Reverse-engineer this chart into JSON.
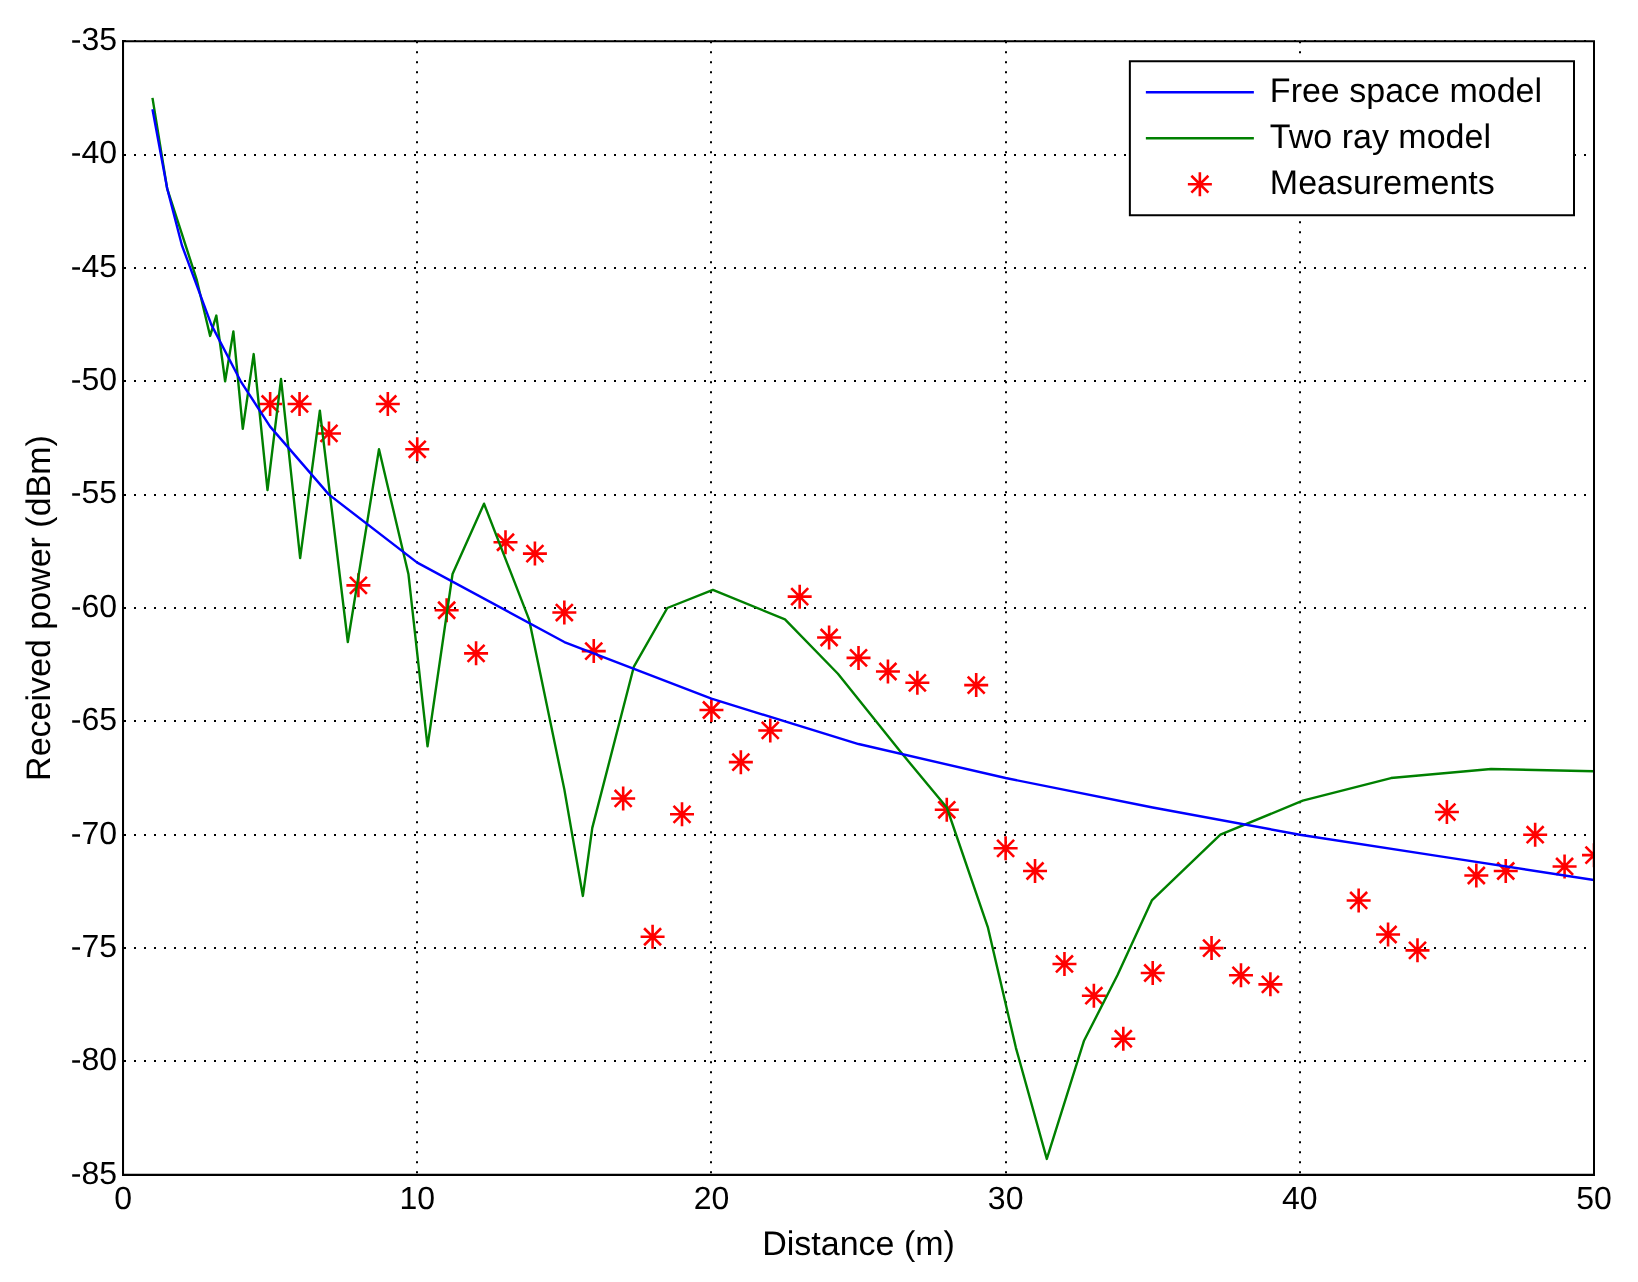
{
  "chart_data": {
    "type": "line",
    "xlabel": "Distance (m)",
    "ylabel": "Received power (dBm)",
    "xlim": [
      0,
      50
    ],
    "xticks": [
      0,
      10,
      20,
      30,
      40,
      50
    ],
    "ylim": [
      -85,
      -35
    ],
    "yticks": [
      -85,
      -80,
      -75,
      -70,
      -65,
      -60,
      -55,
      -50,
      -45,
      -40,
      -35
    ],
    "grid": true,
    "legend": "top right",
    "line_style": "solid",
    "series": [
      {
        "name": "Free space model",
        "color": "#0000ff",
        "marker": "none",
        "x": [
          1,
          1.5,
          2,
          3,
          4,
          5,
          7,
          10,
          15,
          20,
          25,
          30,
          35,
          40,
          45,
          50
        ],
        "values": [
          -38,
          -41.5,
          -44,
          -47.5,
          -50,
          -52,
          -55,
          -58,
          -61.5,
          -64,
          -66,
          -67.5,
          -68.8,
          -70,
          -71,
          -72
        ]
      },
      {
        "name": "Two ray model",
        "color": "#008000",
        "marker": "none",
        "x": [
          1,
          1.5,
          2,
          2.5,
          2.96,
          3.17,
          3.47,
          3.75,
          4.07,
          4.44,
          4.91,
          5.37,
          6.02,
          6.69,
          7.64,
          8.7,
          9.7,
          10.35,
          11.2,
          12.27,
          13.8,
          15.0,
          15.63,
          15.95,
          17.36,
          18.5,
          20.05,
          22.5,
          24.3,
          26.4,
          28.0,
          29.4,
          30.35,
          31.4,
          32.66,
          33.8,
          34.97,
          37.3,
          40.1,
          43.1,
          46.5,
          50
        ],
        "values": [
          -37.5,
          -41.5,
          -43.5,
          -45.5,
          -48,
          -47.1,
          -50,
          -47.8,
          -52.1,
          -48.8,
          -54.8,
          -49.9,
          -57.8,
          -51.3,
          -61.5,
          -53,
          -58.5,
          -66.1,
          -58.5,
          -55.4,
          -60.5,
          -68,
          -72.7,
          -69.7,
          -62.6,
          -60,
          -59.2,
          -60.5,
          -62.9,
          -66.3,
          -68.8,
          -74.1,
          -79.4,
          -84.3,
          -79.1,
          -76.2,
          -72.9,
          -70,
          -68.5,
          -67.5,
          -67.1,
          -67.2
        ]
      },
      {
        "name": "Measurements",
        "type": "scatter",
        "color": "#ff0000",
        "marker": "cross",
        "x": [
          5,
          6,
          7,
          8,
          9,
          10,
          11,
          12,
          13,
          14,
          15,
          16,
          17,
          18,
          19,
          20,
          21,
          22,
          23,
          24,
          25,
          26,
          27,
          28,
          29,
          30,
          31,
          32,
          33,
          34,
          35,
          37,
          38,
          39,
          42,
          43,
          44,
          45,
          46,
          47,
          48,
          49,
          50
        ],
        "values": [
          -51,
          -51,
          -52.3,
          -59,
          -51,
          -53,
          -60.1,
          -62,
          -57.1,
          -57.6,
          -60.2,
          -61.9,
          -68.4,
          -74.5,
          -69.1,
          -64.5,
          -66.8,
          -65.4,
          -59.5,
          -61.3,
          -62.2,
          -62.8,
          -63.3,
          -68.9,
          -63.4,
          -70.6,
          -71.6,
          -75.7,
          -77.1,
          -79,
          -76.1,
          -75,
          -76.2,
          -76.6,
          -72.9,
          -74.4,
          -75.1,
          -69,
          -71.8,
          -71.6,
          -70,
          -71.4,
          -70.9
        ]
      }
    ]
  }
}
